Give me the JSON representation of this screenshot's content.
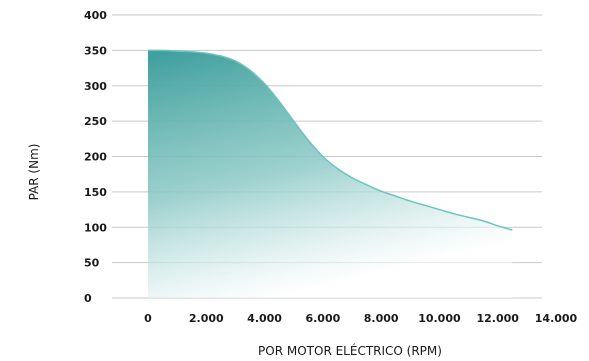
{
  "chart_data": {
    "type": "area",
    "title": "",
    "xlabel": "POR MOTOR ELÉCTRICO (RPM)",
    "ylabel": "PAR (Nm)",
    "xlim": [
      0,
      14000
    ],
    "ylim": [
      0,
      400
    ],
    "x_ticks": [
      0,
      2000,
      4000,
      6000,
      8000,
      10000,
      12000,
      14000
    ],
    "x_tick_labels": [
      "0",
      "2.000",
      "4.000",
      "6.000",
      "8.000",
      "10.000",
      "12.000",
      "14.000"
    ],
    "y_ticks": [
      0,
      50,
      100,
      150,
      200,
      250,
      300,
      350,
      400
    ],
    "y_tick_labels": [
      "0",
      "50",
      "100",
      "150",
      "200",
      "250",
      "300",
      "350",
      "400"
    ],
    "grid": "horizontal",
    "series": [
      {
        "x": [
          0,
          500,
          1000,
          1500,
          2000,
          2500,
          3000,
          3500,
          4000,
          4500,
          5000,
          5500,
          6000,
          6500,
          7000,
          7500,
          8000,
          8500,
          9000,
          9500,
          10000,
          10500,
          11000,
          11500,
          12000,
          12500
        ],
        "y": [
          350,
          350,
          349,
          348,
          346,
          342,
          335,
          322,
          303,
          278,
          250,
          223,
          200,
          183,
          170,
          160,
          151,
          144,
          137,
          131,
          125,
          119,
          114,
          109,
          102,
          96
        ]
      }
    ],
    "colors": {
      "line": "#6cc4c0",
      "fill_top": "#3c9e9b",
      "fill_bottom": "#ffffff",
      "grid": "#c9c9c9",
      "text": "#1a1a1a"
    }
  }
}
